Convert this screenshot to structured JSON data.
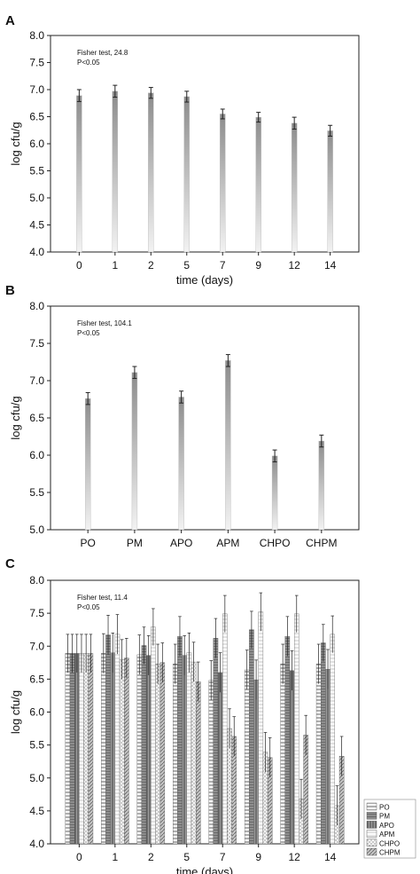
{
  "chart_data": [
    {
      "panel": "A",
      "type": "bar",
      "annotation": [
        "Fisher test, 24.8",
        "P<0.05"
      ],
      "xlabel": "time (days)",
      "ylabel": "log cfu/g",
      "categories": [
        "0",
        "1",
        "2",
        "5",
        "7",
        "9",
        "12",
        "14"
      ],
      "values": [
        6.89,
        6.97,
        6.94,
        6.87,
        6.55,
        6.49,
        6.38,
        6.24
      ],
      "errors": [
        0.11,
        0.11,
        0.1,
        0.1,
        0.09,
        0.09,
        0.11,
        0.1
      ],
      "ylim": [
        4.0,
        8.0
      ],
      "yticks": [
        "4.0",
        "4.5",
        "5.0",
        "5.5",
        "6.0",
        "6.5",
        "7.0",
        "7.5",
        "8.0"
      ]
    },
    {
      "panel": "B",
      "type": "bar",
      "annotation": [
        "Fisher test, 104.1",
        "P<0.05"
      ],
      "xlabel": "",
      "ylabel": "log cfu/g",
      "categories": [
        "PO",
        "PM",
        "APO",
        "APM",
        "CHPO",
        "CHPM"
      ],
      "values": [
        6.76,
        7.11,
        6.78,
        7.27,
        5.99,
        6.19
      ],
      "errors": [
        0.08,
        0.08,
        0.08,
        0.08,
        0.08,
        0.08
      ],
      "ylim": [
        5.0,
        8.0
      ],
      "yticks": [
        "5.0",
        "5.5",
        "6.0",
        "6.5",
        "7.0",
        "7.5",
        "8.0"
      ]
    },
    {
      "panel": "C",
      "type": "bar",
      "annotation": [
        "Fisher test, 11.4",
        "P<0.05"
      ],
      "xlabel": "time (days)",
      "ylabel": "log cfu/g",
      "categories": [
        "0",
        "1",
        "2",
        "5",
        "7",
        "9",
        "12",
        "14"
      ],
      "legend_position": "bottom-right, outside",
      "series": [
        {
          "name": "PO",
          "values": [
            6.89,
            6.89,
            6.87,
            6.73,
            6.48,
            6.64,
            6.73,
            6.73
          ],
          "errors": [
            0.29,
            0.3,
            0.3,
            0.3,
            0.3,
            0.3,
            0.3,
            0.3
          ]
        },
        {
          "name": "PM",
          "values": [
            6.89,
            7.17,
            7.01,
            7.15,
            7.12,
            7.25,
            7.15,
            7.05
          ],
          "errors": [
            0.29,
            0.3,
            0.28,
            0.3,
            0.3,
            0.28,
            0.3,
            0.28
          ]
        },
        {
          "name": "APO",
          "values": [
            6.89,
            6.9,
            6.86,
            6.86,
            6.6,
            6.49,
            6.63,
            6.65
          ],
          "errors": [
            0.29,
            0.3,
            0.3,
            0.3,
            0.3,
            0.3,
            0.3,
            0.3
          ]
        },
        {
          "name": "APM",
          "values": [
            6.89,
            7.18,
            7.29,
            6.9,
            7.49,
            7.52,
            7.49,
            7.18
          ],
          "errors": [
            0.29,
            0.3,
            0.28,
            0.3,
            0.28,
            0.29,
            0.28,
            0.28
          ]
        },
        {
          "name": "CHPO",
          "values": [
            6.89,
            6.8,
            6.73,
            6.76,
            5.75,
            5.39,
            4.68,
            4.58
          ],
          "errors": [
            0.29,
            0.3,
            0.3,
            0.3,
            0.3,
            0.3,
            0.3,
            0.3
          ]
        },
        {
          "name": "CHPM",
          "values": [
            6.89,
            6.82,
            6.75,
            6.46,
            5.63,
            5.31,
            5.65,
            5.33
          ],
          "errors": [
            0.29,
            0.3,
            0.3,
            0.3,
            0.3,
            0.3,
            0.3,
            0.3
          ]
        }
      ],
      "ylim": [
        4.0,
        8.0
      ],
      "yticks": [
        "4.0",
        "4.5",
        "5.0",
        "5.5",
        "6.0",
        "6.5",
        "7.0",
        "7.5",
        "8.0"
      ]
    }
  ]
}
